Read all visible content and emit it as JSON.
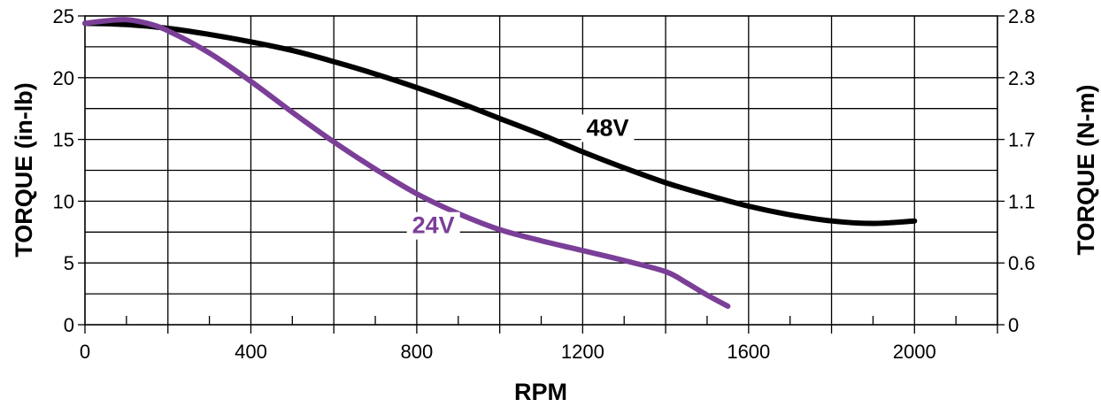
{
  "chart_data": {
    "type": "line",
    "xlabel": "RPM",
    "ylabel": "TORQUE (in-lb)",
    "ylabel_right": "TORQUE (N-m)",
    "xlim": [
      0,
      2200
    ],
    "ylim": [
      0,
      25
    ],
    "x_ticks": [
      0,
      400,
      800,
      1200,
      1600,
      2000
    ],
    "y_ticks": [
      0,
      5,
      10,
      15,
      20,
      25
    ],
    "y_right_ticks": [
      "0",
      "0.6",
      "1.1",
      "1.7",
      "2.3",
      "2.8"
    ],
    "grid": true,
    "series": [
      {
        "name": "48V",
        "color": "#000000",
        "x": [
          0,
          100,
          200,
          300,
          400,
          500,
          600,
          700,
          800,
          900,
          1000,
          1100,
          1200,
          1300,
          1400,
          1500,
          1600,
          1700,
          1800,
          1900,
          2000
        ],
        "y": [
          24.4,
          24.3,
          24.0,
          23.5,
          22.9,
          22.2,
          21.3,
          20.3,
          19.2,
          18.0,
          16.7,
          15.4,
          14.0,
          12.7,
          11.5,
          10.5,
          9.6,
          8.9,
          8.4,
          8.2,
          8.4
        ]
      },
      {
        "name": "24V",
        "color": "#7b3f98",
        "x": [
          0,
          50,
          100,
          150,
          200,
          300,
          400,
          500,
          600,
          700,
          800,
          900,
          1000,
          1100,
          1200,
          1300,
          1400,
          1450,
          1500,
          1550
        ],
        "y": [
          24.4,
          24.6,
          24.7,
          24.4,
          23.8,
          22.0,
          19.7,
          17.2,
          14.8,
          12.6,
          10.6,
          9.0,
          7.7,
          6.8,
          6.0,
          5.2,
          4.3,
          3.4,
          2.4,
          1.5
        ]
      }
    ]
  }
}
